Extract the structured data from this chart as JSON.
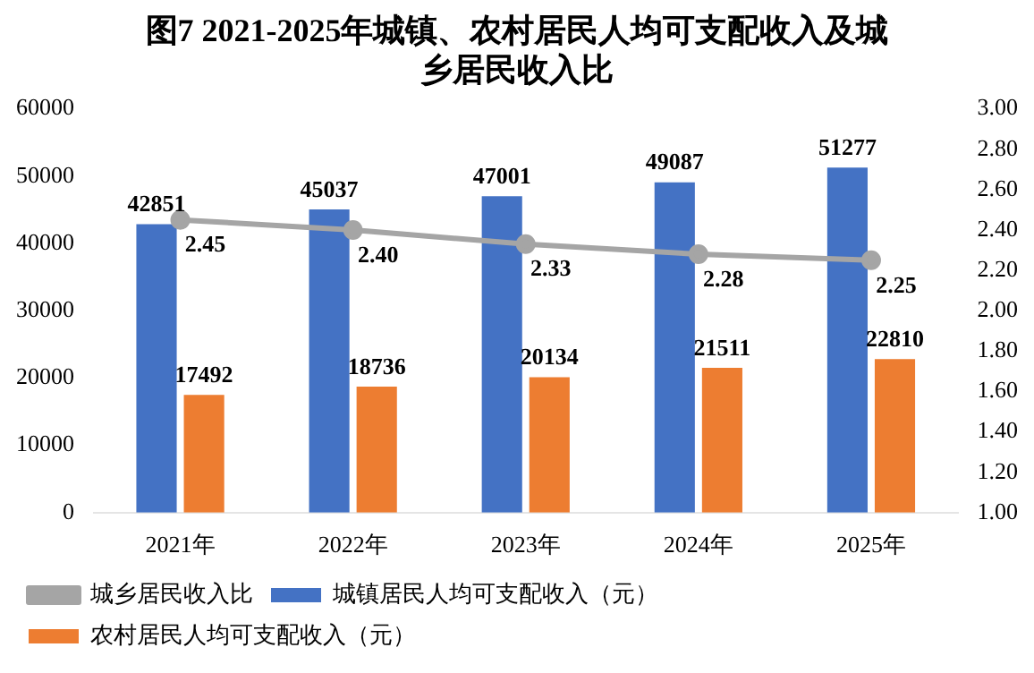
{
  "chart_data": {
    "type": "bar",
    "title": "图7 2021-2025年城镇、农村居民人均可支配收入及城乡居民收入比",
    "categories": [
      "2021年",
      "2022年",
      "2023年",
      "2024年",
      "2025年"
    ],
    "series": [
      {
        "name": "城镇居民人均可支配收入（元）",
        "color": "#4472c4",
        "values": [
          42851,
          45037,
          47001,
          49087,
          51277
        ]
      },
      {
        "name": "农村居民人均可支配收入（元）",
        "color": "#ed7d31",
        "values": [
          17492,
          18736,
          20134,
          21511,
          22810
        ]
      },
      {
        "name": "城乡居民收入比",
        "type": "line",
        "axis": "y2",
        "color": "#a5a5a5",
        "values": [
          2.45,
          2.4,
          2.33,
          2.28,
          2.25
        ],
        "value_labels": [
          "2.45",
          "2.40",
          "2.33",
          "2.28",
          "2.25"
        ]
      }
    ],
    "data_labels": true,
    "ylim": [
      0,
      60000
    ],
    "yticks": [
      0,
      10000,
      20000,
      30000,
      40000,
      50000,
      60000
    ],
    "y2lim": [
      1,
      3
    ],
    "y2ticks": [
      {
        "value": 1,
        "label": "1.00"
      },
      {
        "value": 1.2,
        "label": "1.20"
      },
      {
        "value": 1.4,
        "label": "1.40"
      },
      {
        "value": 1.6,
        "label": "1.60"
      },
      {
        "value": 1.8,
        "label": "1.80"
      },
      {
        "value": 2,
        "label": "2.00"
      },
      {
        "value": 2.2,
        "label": "2.20"
      },
      {
        "value": 2.4,
        "label": "2.40"
      },
      {
        "value": 2.6,
        "label": "2.60"
      },
      {
        "value": 2.8,
        "label": "2.80"
      },
      {
        "value": 3,
        "label": "3.00"
      }
    ],
    "marker": "circle",
    "legend": "bottom"
  }
}
